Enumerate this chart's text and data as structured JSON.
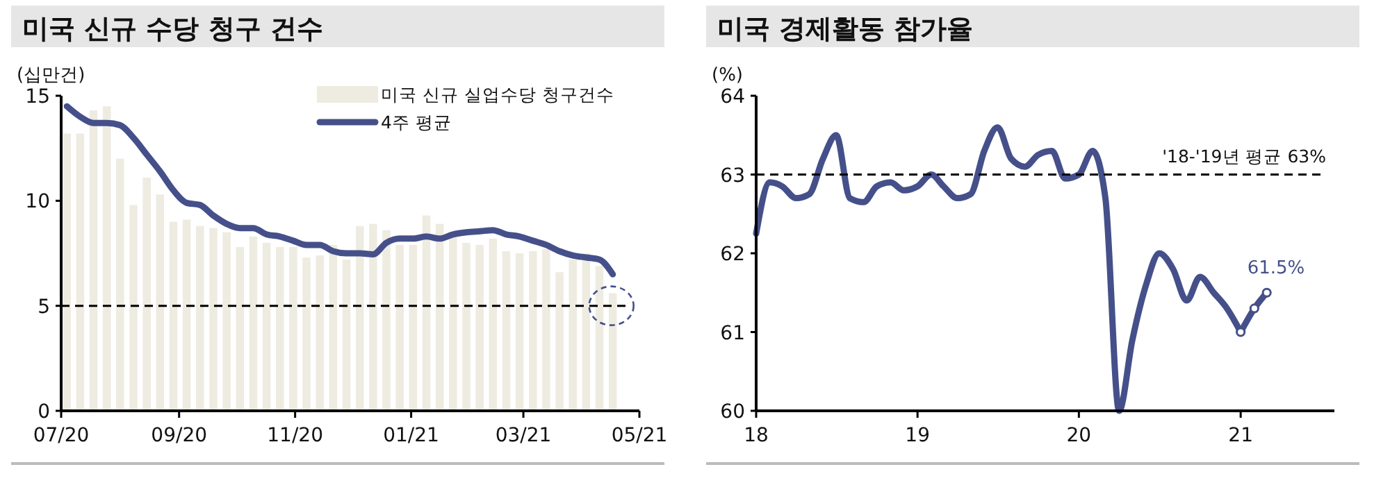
{
  "chart_data": [
    {
      "type": "bar",
      "title": "미국 신규 수당 청구 건수",
      "ylabel": "(십만건)",
      "x": [
        "2020-07-04",
        "2020-07-11",
        "2020-07-18",
        "2020-07-25",
        "2020-08-01",
        "2020-08-08",
        "2020-08-15",
        "2020-08-22",
        "2020-08-29",
        "2020-09-05",
        "2020-09-12",
        "2020-09-19",
        "2020-09-26",
        "2020-10-03",
        "2020-10-10",
        "2020-10-17",
        "2020-10-24",
        "2020-10-31",
        "2020-11-07",
        "2020-11-14",
        "2020-11-21",
        "2020-11-28",
        "2020-12-05",
        "2020-12-12",
        "2020-12-19",
        "2020-12-26",
        "2021-01-02",
        "2021-01-09",
        "2021-01-16",
        "2021-01-23",
        "2021-01-30",
        "2021-02-06",
        "2021-02-13",
        "2021-02-20",
        "2021-02-27",
        "2021-03-06",
        "2021-03-13",
        "2021-03-20",
        "2021-03-27",
        "2021-04-03",
        "2021-04-10",
        "2021-04-17"
      ],
      "series": [
        {
          "name": "미국 신규 실업수당 청구건수",
          "type": "bar",
          "color": "#eeebe1",
          "values": [
            13.2,
            13.2,
            14.3,
            14.5,
            12.0,
            9.8,
            11.1,
            10.3,
            9.0,
            9.1,
            8.8,
            8.7,
            8.5,
            7.8,
            8.3,
            8.0,
            7.8,
            7.8,
            7.3,
            7.4,
            7.9,
            7.2,
            8.8,
            8.9,
            8.6,
            7.9,
            7.9,
            9.3,
            8.9,
            8.5,
            8.0,
            7.9,
            8.2,
            7.6,
            7.5,
            7.6,
            7.7,
            6.6,
            7.2,
            7.5,
            6.9,
            5.6
          ]
        },
        {
          "name": "4주 평균",
          "type": "line",
          "color": "#45508a",
          "values": [
            14.5,
            14.0,
            13.7,
            13.7,
            13.6,
            13.0,
            12.2,
            11.4,
            10.5,
            9.9,
            9.8,
            9.3,
            8.9,
            8.7,
            8.7,
            8.4,
            8.3,
            8.1,
            7.9,
            7.9,
            7.6,
            7.5,
            7.5,
            7.45,
            8.0,
            8.2,
            8.2,
            8.3,
            8.2,
            8.4,
            8.5,
            8.55,
            8.6,
            8.4,
            8.3,
            8.1,
            7.9,
            7.6,
            7.4,
            7.3,
            7.2,
            6.5
          ]
        }
      ],
      "xlim": [
        "2020-07-01",
        "2021-05-01"
      ],
      "xticks": [
        {
          "value": "2020-07-01",
          "label": "07/20"
        },
        {
          "value": "2020-09-01",
          "label": "09/20"
        },
        {
          "value": "2020-11-01",
          "label": "11/20"
        },
        {
          "value": "2021-01-01",
          "label": "01/21"
        },
        {
          "value": "2021-03-01",
          "label": "03/21"
        },
        {
          "value": "2021-05-01",
          "label": "05/21"
        }
      ],
      "ylim": [
        0,
        15
      ],
      "yticks": [
        0,
        5,
        10,
        15
      ],
      "ref_lines": [
        {
          "axis": "y",
          "value": 5,
          "line_style": "dashed",
          "color": "#000000"
        }
      ],
      "legend": "top right",
      "grid": false
    },
    {
      "type": "line",
      "title": "미국 경제활동 참가율",
      "ylabel": "(%)",
      "series": [
        {
          "color": "#45508a",
          "marker": "none",
          "x": [
            "2018-01",
            "2018-02",
            "2018-03",
            "2018-04",
            "2018-05",
            "2018-06",
            "2018-07",
            "2018-08",
            "2018-09",
            "2018-10",
            "2018-11",
            "2018-12",
            "2019-01",
            "2019-02",
            "2019-03",
            "2019-04",
            "2019-05",
            "2019-06",
            "2019-07",
            "2019-08",
            "2019-09",
            "2019-10",
            "2019-11",
            "2019-12",
            "2020-01",
            "2020-02",
            "2020-03",
            "2020-04",
            "2020-05",
            "2020-06",
            "2020-07",
            "2020-08",
            "2020-09",
            "2020-10",
            "2020-11",
            "2020-12",
            "2021-01"
          ],
          "values": [
            62.25,
            62.9,
            62.85,
            62.7,
            62.75,
            63.2,
            63.5,
            62.7,
            62.65,
            62.85,
            62.9,
            62.8,
            62.85,
            63.0,
            62.85,
            62.7,
            62.75,
            63.3,
            63.6,
            63.2,
            63.1,
            63.25,
            63.3,
            62.95,
            63.0,
            63.3,
            62.7,
            60.0,
            60.9,
            61.6,
            62.0,
            61.8,
            61.4,
            61.7,
            61.5,
            61.3,
            61.0
          ]
        },
        {
          "color": "#45508a",
          "marker": "circle",
          "x": [
            "2021-01",
            "2021-02",
            "2021-03"
          ],
          "values": [
            61.0,
            61.3,
            61.5
          ]
        }
      ],
      "xlim": [
        "2018-01-01",
        "2021-08-01"
      ],
      "xticks": [
        {
          "value": "2018-01-01",
          "label": "18"
        },
        {
          "value": "2019-01-01",
          "label": "19"
        },
        {
          "value": "2020-01-01",
          "label": "20"
        },
        {
          "value": "2021-01-01",
          "label": "21"
        }
      ],
      "ylim": [
        60,
        64
      ],
      "yticks": [
        60,
        61,
        62,
        63,
        64
      ],
      "ref_lines": [
        {
          "axis": "y",
          "value": 63,
          "label": "'18-'19년 평균 63%",
          "line_style": "dashed",
          "color": "#000000"
        }
      ],
      "annotations": [
        {
          "text": "61.5%",
          "x": "2021-03",
          "y": 61.5
        }
      ],
      "legend": false,
      "grid": false
    }
  ]
}
